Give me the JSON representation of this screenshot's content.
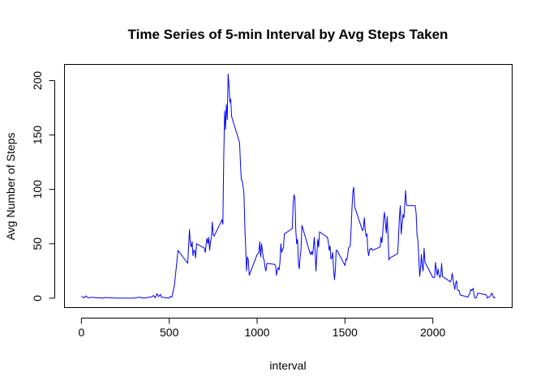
{
  "chart_data": {
    "type": "line",
    "title": "Time Series of 5-min Interval by Avg Steps Taken",
    "xlabel": "interval",
    "ylabel": "Avg Number of Steps",
    "xlim": [
      -94,
      2449
    ],
    "ylim": [
      -8.25,
      214.5
    ],
    "x_ticks": [
      0,
      500,
      1000,
      1500,
      2000
    ],
    "y_ticks": [
      0,
      50,
      100,
      150,
      200
    ],
    "grid": false,
    "line_color": "#0000ff",
    "series": [
      {
        "values": [
          [
            0,
            1.7
          ],
          [
            15,
            0.3
          ],
          [
            25,
            2.1
          ],
          [
            40,
            0.2
          ],
          [
            55,
            0.8
          ],
          [
            100,
            0.3
          ],
          [
            120,
            0.0
          ],
          [
            135,
            0.6
          ],
          [
            200,
            0.0
          ],
          [
            245,
            0.0
          ],
          [
            300,
            0.0
          ],
          [
            330,
            0.9
          ],
          [
            355,
            0.0
          ],
          [
            400,
            1.2
          ],
          [
            410,
            2.5
          ],
          [
            420,
            0.3
          ],
          [
            430,
            4.1
          ],
          [
            440,
            1.4
          ],
          [
            450,
            3.6
          ],
          [
            455,
            0.9
          ],
          [
            500,
            0.0
          ],
          [
            505,
            1.6
          ],
          [
            515,
            1.0
          ],
          [
            530,
            12.5
          ],
          [
            550,
            44.0
          ],
          [
            605,
            32.0
          ],
          [
            615,
            63.0
          ],
          [
            620,
            50.0
          ],
          [
            625,
            47.0
          ],
          [
            630,
            52.0
          ],
          [
            635,
            39.0
          ],
          [
            640,
            44.0
          ],
          [
            645,
            44.0
          ],
          [
            650,
            37.0
          ],
          [
            655,
            50.0
          ],
          [
            700,
            46.0
          ],
          [
            705,
            42.0
          ],
          [
            710,
            50.0
          ],
          [
            715,
            55.0
          ],
          [
            720,
            50.0
          ],
          [
            725,
            56.0
          ],
          [
            730,
            44.0
          ],
          [
            735,
            52.0
          ],
          [
            740,
            56.0
          ],
          [
            745,
            70.0
          ],
          [
            750,
            58.0
          ],
          [
            755,
            57.0
          ],
          [
            800,
            72.0
          ],
          [
            805,
            68.0
          ],
          [
            810,
            130.0
          ],
          [
            815,
            172.0
          ],
          [
            820,
            155.0
          ],
          [
            825,
            178.0
          ],
          [
            830,
            164.0
          ],
          [
            835,
            206.0
          ],
          [
            840,
            195.0
          ],
          [
            845,
            180.0
          ],
          [
            850,
            183.0
          ],
          [
            855,
            167.0
          ],
          [
            900,
            143.0
          ],
          [
            905,
            124.0
          ],
          [
            910,
            109.0
          ],
          [
            915,
            108.0
          ],
          [
            920,
            103.0
          ],
          [
            925,
            96.0
          ],
          [
            930,
            66.0
          ],
          [
            935,
            45.0
          ],
          [
            940,
            25.0
          ],
          [
            945,
            38.0
          ],
          [
            950,
            35.0
          ],
          [
            955,
            21.0
          ],
          [
            1000,
            40.0
          ],
          [
            1010,
            42.0
          ],
          [
            1015,
            52.0
          ],
          [
            1020,
            38.0
          ],
          [
            1025,
            50.0
          ],
          [
            1030,
            44.0
          ],
          [
            1035,
            37.0
          ],
          [
            1040,
            35.0
          ],
          [
            1045,
            28.0
          ],
          [
            1050,
            25.0
          ],
          [
            1055,
            32.0
          ],
          [
            1100,
            31.0
          ],
          [
            1105,
            30.0
          ],
          [
            1110,
            21.0
          ],
          [
            1115,
            26.0
          ],
          [
            1120,
            28.0
          ],
          [
            1125,
            26.0
          ],
          [
            1130,
            33.0
          ],
          [
            1135,
            50.0
          ],
          [
            1140,
            42.0
          ],
          [
            1145,
            45.0
          ],
          [
            1150,
            46.0
          ],
          [
            1155,
            59.0
          ],
          [
            1200,
            64.0
          ],
          [
            1205,
            87.0
          ],
          [
            1210,
            95.0
          ],
          [
            1215,
            92.0
          ],
          [
            1220,
            63.0
          ],
          [
            1225,
            50.0
          ],
          [
            1230,
            54.0
          ],
          [
            1235,
            32.0
          ],
          [
            1240,
            27.0
          ],
          [
            1245,
            38.0
          ],
          [
            1250,
            45.0
          ],
          [
            1255,
            67.0
          ],
          [
            1300,
            42.0
          ],
          [
            1305,
            40.0
          ],
          [
            1310,
            43.0
          ],
          [
            1315,
            40.0
          ],
          [
            1320,
            46.0
          ],
          [
            1325,
            56.0
          ],
          [
            1330,
            43.0
          ],
          [
            1335,
            25.0
          ],
          [
            1340,
            40.0
          ],
          [
            1345,
            54.0
          ],
          [
            1350,
            47.0
          ],
          [
            1355,
            61.0
          ],
          [
            1400,
            56.0
          ],
          [
            1405,
            52.0
          ],
          [
            1410,
            44.0
          ],
          [
            1415,
            48.0
          ],
          [
            1420,
            36.0
          ],
          [
            1425,
            37.0
          ],
          [
            1430,
            42.0
          ],
          [
            1435,
            27.0
          ],
          [
            1440,
            17.0
          ],
          [
            1445,
            26.0
          ],
          [
            1450,
            44.0
          ],
          [
            1455,
            44.0
          ],
          [
            1500,
            30.0
          ],
          [
            1505,
            36.0
          ],
          [
            1510,
            35.0
          ],
          [
            1515,
            39.0
          ],
          [
            1520,
            46.0
          ],
          [
            1525,
            47.0
          ],
          [
            1530,
            48.0
          ],
          [
            1535,
            65.0
          ],
          [
            1540,
            83.0
          ],
          [
            1545,
            98.0
          ],
          [
            1550,
            102.0
          ],
          [
            1555,
            84.0
          ],
          [
            1600,
            62.0
          ],
          [
            1605,
            64.0
          ],
          [
            1610,
            74.0
          ],
          [
            1615,
            63.0
          ],
          [
            1620,
            57.0
          ],
          [
            1625,
            59.0
          ],
          [
            1630,
            44.0
          ],
          [
            1635,
            39.0
          ],
          [
            1640,
            45.0
          ],
          [
            1645,
            45.0
          ],
          [
            1650,
            46.0
          ],
          [
            1655,
            44.0
          ],
          [
            1700,
            47.0
          ],
          [
            1705,
            56.0
          ],
          [
            1710,
            51.0
          ],
          [
            1715,
            61.0
          ],
          [
            1720,
            73.0
          ],
          [
            1725,
            79.0
          ],
          [
            1730,
            69.0
          ],
          [
            1735,
            60.0
          ],
          [
            1740,
            75.0
          ],
          [
            1745,
            57.0
          ],
          [
            1750,
            35.0
          ],
          [
            1755,
            37.0
          ],
          [
            1800,
            41.0
          ],
          [
            1805,
            58.0
          ],
          [
            1810,
            75.0
          ],
          [
            1815,
            85.0
          ],
          [
            1820,
            59.0
          ],
          [
            1825,
            68.0
          ],
          [
            1830,
            77.0
          ],
          [
            1835,
            74.0
          ],
          [
            1840,
            85.0
          ],
          [
            1845,
            99.0
          ],
          [
            1850,
            86.0
          ],
          [
            1855,
            85.0
          ],
          [
            1900,
            85.0
          ],
          [
            1905,
            78.0
          ],
          [
            1910,
            58.0
          ],
          [
            1915,
            53.0
          ],
          [
            1920,
            37.0
          ],
          [
            1925,
            20.0
          ],
          [
            1930,
            27.0
          ],
          [
            1935,
            40.0
          ],
          [
            1940,
            30.0
          ],
          [
            1945,
            25.0
          ],
          [
            1950,
            46.0
          ],
          [
            1955,
            33.0
          ],
          [
            2000,
            19.0
          ],
          [
            2005,
            19.0
          ],
          [
            2010,
            19.0
          ],
          [
            2015,
            33.0
          ],
          [
            2020,
            26.0
          ],
          [
            2025,
            21.0
          ],
          [
            2030,
            27.0
          ],
          [
            2035,
            21.0
          ],
          [
            2040,
            19.0
          ],
          [
            2045,
            21.0
          ],
          [
            2050,
            32.0
          ],
          [
            2055,
            20.0
          ],
          [
            2100,
            15.0
          ],
          [
            2105,
            17.0
          ],
          [
            2110,
            23.0
          ],
          [
            2115,
            18.0
          ],
          [
            2120,
            12.0
          ],
          [
            2125,
            8.0
          ],
          [
            2130,
            14.0
          ],
          [
            2135,
            16.0
          ],
          [
            2140,
            8.0
          ],
          [
            2145,
            7.0
          ],
          [
            2150,
            7.0
          ],
          [
            2155,
            3.0
          ],
          [
            2200,
            1.0
          ],
          [
            2205,
            3.0
          ],
          [
            2210,
            4.0
          ],
          [
            2215,
            8.0
          ],
          [
            2220,
            7.0
          ],
          [
            2225,
            8.0
          ],
          [
            2230,
            9.0
          ],
          [
            2235,
            2.0
          ],
          [
            2240,
            0.3
          ],
          [
            2245,
            0.1
          ],
          [
            2250,
            1.6
          ],
          [
            2255,
            4.6
          ],
          [
            2300,
            3.3
          ],
          [
            2305,
            2.8
          ],
          [
            2310,
            0.0
          ],
          [
            2315,
            0.8
          ],
          [
            2320,
            1.0
          ],
          [
            2325,
            1.6
          ],
          [
            2330,
            2.6
          ],
          [
            2335,
            4.7
          ],
          [
            2340,
            3.3
          ],
          [
            2345,
            0.6
          ],
          [
            2350,
            0.2
          ],
          [
            2355,
            1.1
          ]
        ]
      }
    ]
  }
}
